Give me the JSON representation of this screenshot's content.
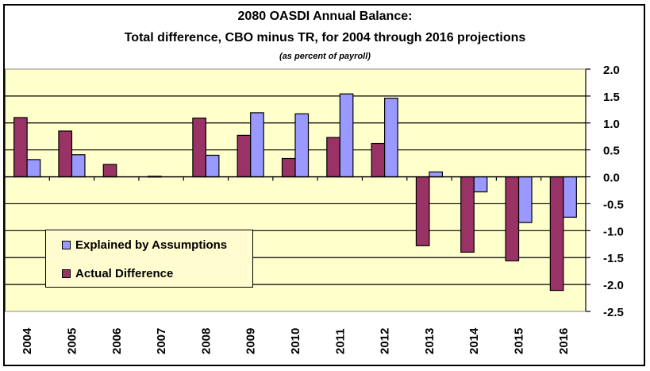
{
  "chart_data": {
    "type": "bar",
    "title": "2080 OASDI Annual Balance:",
    "subtitle": "Total difference, CBO minus TR, for 2004 through 2016 projections",
    "note": "(as percent of payroll)",
    "xlabel": "",
    "ylabel": "",
    "ylim": [
      -2.5,
      2.0
    ],
    "yticks": [
      "2.0",
      "1.5",
      "1.0",
      "0.5",
      "0.0",
      "-0.5",
      "-1.0",
      "-1.5",
      "-2.0",
      "-2.5"
    ],
    "ytick_values": [
      2.0,
      1.5,
      1.0,
      0.5,
      0.0,
      -0.5,
      -1.0,
      -1.5,
      -2.0,
      -2.5
    ],
    "y_axis_side": "right",
    "grid": true,
    "legend_position": "lower-left",
    "categories": [
      "2004",
      "2005",
      "2006",
      "2007",
      "2008",
      "2009",
      "2010",
      "2011",
      "2012",
      "2013",
      "2014",
      "2015",
      "2016"
    ],
    "series": [
      {
        "name": "Actual Difference",
        "color": "#993366",
        "values": [
          1.1,
          0.85,
          0.23,
          0.01,
          1.09,
          0.77,
          0.34,
          0.73,
          0.62,
          -1.28,
          -1.4,
          -1.56,
          -2.11
        ]
      },
      {
        "name": "Explained by Assumptions",
        "color": "#9999ff",
        "values": [
          0.32,
          0.41,
          0.0,
          0.0,
          0.4,
          1.19,
          1.17,
          1.54,
          1.46,
          0.09,
          -0.28,
          -0.85,
          -0.75
        ]
      }
    ],
    "legend": [
      {
        "label": "Explained by Assumptions",
        "color": "#9999ff"
      },
      {
        "label": "Actual Difference",
        "color": "#993366"
      }
    ],
    "plot_background": "#ffffcc"
  }
}
